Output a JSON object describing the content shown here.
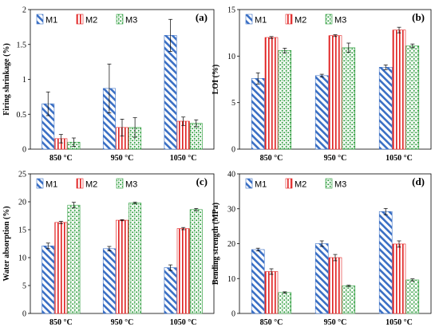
{
  "colors": {
    "M1": "#3a6fc4",
    "M2": "#e01f1f",
    "M3": "#2f9e3e"
  },
  "chart_data": [
    {
      "type": "bar",
      "panel_label": "(a)",
      "categories": [
        "850 °C",
        "950 °C",
        "1050 °C"
      ],
      "ylabel": "Firing shrinkage (%)",
      "ylim": [
        0,
        2
      ],
      "yticks": [
        "0",
        "0.5",
        "1",
        "1.5",
        "2"
      ],
      "legend": "top-left",
      "series": [
        {
          "name": "M1",
          "values": [
            0.65,
            0.87,
            1.63
          ],
          "errors": [
            0.17,
            0.35,
            0.23
          ]
        },
        {
          "name": "M2",
          "values": [
            0.15,
            0.31,
            0.4
          ],
          "errors": [
            0.06,
            0.12,
            0.06
          ]
        },
        {
          "name": "M3",
          "values": [
            0.1,
            0.31,
            0.37
          ],
          "errors": [
            0.06,
            0.14,
            0.05
          ]
        }
      ]
    },
    {
      "type": "bar",
      "panel_label": "(b)",
      "categories": [
        "850 °C",
        "950 °C",
        "1050 °C"
      ],
      "ylabel": "LOI (%)",
      "ylim": [
        0,
        15
      ],
      "yticks": [
        "0",
        "5",
        "10",
        "15"
      ],
      "legend": "top-left",
      "series": [
        {
          "name": "M1",
          "values": [
            7.6,
            7.9,
            8.8
          ],
          "errors": [
            0.6,
            0.15,
            0.25
          ]
        },
        {
          "name": "M2",
          "values": [
            12.0,
            12.2,
            12.8
          ],
          "errors": [
            0.1,
            0.1,
            0.3
          ]
        },
        {
          "name": "M3",
          "values": [
            10.6,
            10.9,
            11.1
          ],
          "errors": [
            0.25,
            0.5,
            0.2
          ]
        }
      ]
    },
    {
      "type": "bar",
      "panel_label": "(c)",
      "categories": [
        "850 °C",
        "950 °C",
        "1050 °C"
      ],
      "ylabel": "Water absorption (%)",
      "ylim": [
        0,
        25
      ],
      "yticks": [
        "0",
        "5",
        "10",
        "15",
        "20",
        "25"
      ],
      "legend": "top-left",
      "series": [
        {
          "name": "M1",
          "values": [
            12.1,
            11.6,
            8.2
          ],
          "errors": [
            0.5,
            0.4,
            0.5
          ]
        },
        {
          "name": "M2",
          "values": [
            16.3,
            16.7,
            15.2
          ],
          "errors": [
            0.2,
            0.1,
            0.2
          ]
        },
        {
          "name": "M3",
          "values": [
            19.4,
            19.8,
            18.6
          ],
          "errors": [
            0.5,
            0.15,
            0.2
          ]
        }
      ]
    },
    {
      "type": "bar",
      "panel_label": "(d)",
      "categories": [
        "850 °C",
        "950 °C",
        "1050 °C"
      ],
      "ylabel": "Bending strength (MPa)",
      "ylim": [
        0,
        40
      ],
      "yticks": [
        "0",
        "10",
        "20",
        "30",
        "40"
      ],
      "legend": "top-left",
      "series": [
        {
          "name": "M1",
          "values": [
            18.3,
            20.0,
            29.2
          ],
          "errors": [
            0.4,
            0.8,
            0.9
          ]
        },
        {
          "name": "M2",
          "values": [
            12.0,
            16.0,
            19.9
          ],
          "errors": [
            0.8,
            0.9,
            0.9
          ]
        },
        {
          "name": "M3",
          "values": [
            6.0,
            7.9,
            9.6
          ],
          "errors": [
            0.2,
            0.2,
            0.3
          ]
        }
      ]
    }
  ]
}
